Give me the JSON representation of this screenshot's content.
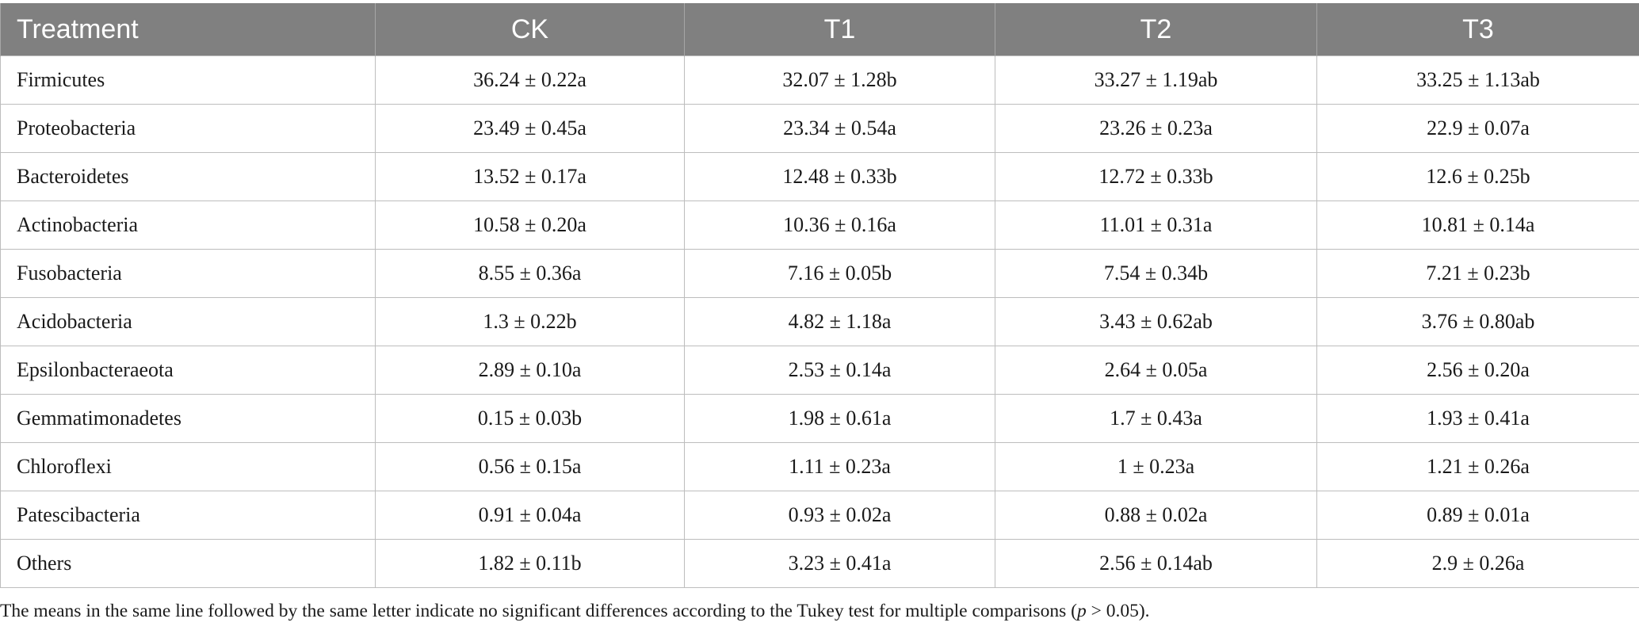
{
  "table": {
    "headers": [
      "Treatment",
      "CK",
      "T1",
      "T2",
      "T3"
    ],
    "rows": [
      [
        "Firmicutes",
        "36.24 ± 0.22a",
        "32.07 ± 1.28b",
        "33.27 ± 1.19ab",
        "33.25 ± 1.13ab"
      ],
      [
        "Proteobacteria",
        "23.49 ± 0.45a",
        "23.34 ± 0.54a",
        "23.26 ± 0.23a",
        "22.9 ± 0.07a"
      ],
      [
        "Bacteroidetes",
        "13.52 ± 0.17a",
        "12.48 ± 0.33b",
        "12.72 ± 0.33b",
        "12.6 ± 0.25b"
      ],
      [
        "Actinobacteria",
        "10.58 ± 0.20a",
        "10.36 ± 0.16a",
        "11.01 ± 0.31a",
        "10.81 ± 0.14a"
      ],
      [
        "Fusobacteria",
        "8.55 ± 0.36a",
        "7.16 ± 0.05b",
        "7.54 ± 0.34b",
        "7.21 ± 0.23b"
      ],
      [
        "Acidobacteria",
        "1.3 ± 0.22b",
        "4.82 ± 1.18a",
        "3.43 ± 0.62ab",
        "3.76 ± 0.80ab"
      ],
      [
        "Epsilonbacteraeota",
        "2.89 ± 0.10a",
        "2.53 ± 0.14a",
        "2.64 ± 0.05a",
        "2.56 ± 0.20a"
      ],
      [
        "Gemmatimonadetes",
        "0.15 ± 0.03b",
        "1.98 ± 0.61a",
        "1.7 ± 0.43a",
        "1.93 ± 0.41a"
      ],
      [
        "Chloroflexi",
        "0.56 ± 0.15a",
        "1.11 ± 0.23a",
        "1 ± 0.23a",
        "1.21 ± 0.26a"
      ],
      [
        "Patescibacteria",
        "0.91 ± 0.04a",
        "0.93 ± 0.02a",
        "0.88 ± 0.02a",
        "0.89 ± 0.01a"
      ],
      [
        "Others",
        "1.82 ± 0.11b",
        "3.23 ± 0.41a",
        "2.56 ± 0.14ab",
        "2.9 ± 0.26a"
      ]
    ]
  },
  "footnote": {
    "before": "The means in the same line followed by the same letter indicate no significant differences according to the Tukey test for multiple comparisons (",
    "italic": "p",
    "after": " > 0.05)."
  },
  "colors": {
    "header_bg": "#808080",
    "header_text": "#ffffff",
    "grid": "#bdbdbd"
  }
}
